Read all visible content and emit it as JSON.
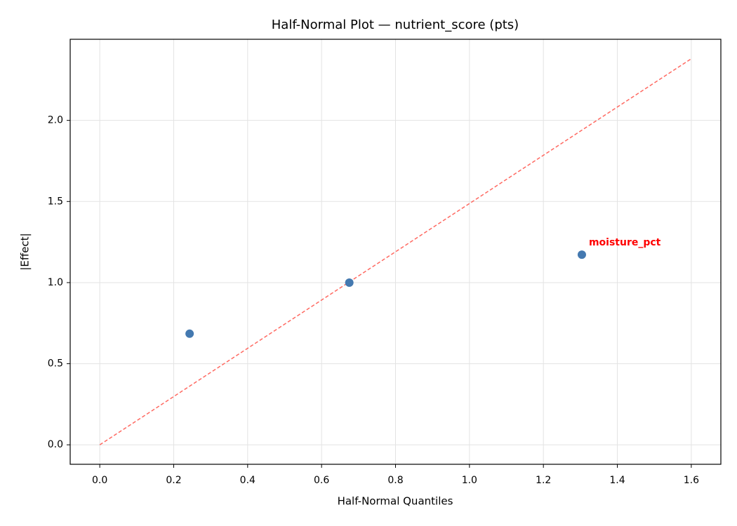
{
  "chart_data": {
    "type": "scatter",
    "title": "Half-Normal Plot — nutrient_score (pts)",
    "xlabel": "Half-Normal Quantiles",
    "ylabel": "|Effect|",
    "x": [
      0.243,
      0.675,
      1.304
    ],
    "y": [
      0.685,
      1.0,
      1.172
    ],
    "color": "#4479b0",
    "point_labels": [
      null,
      null,
      "moisture_pct"
    ],
    "point_label_color": "#ff0000",
    "reference_line": {
      "x": [
        0,
        1.6
      ],
      "y": [
        0,
        2.38
      ],
      "color": "#ff6961",
      "dashed": true
    },
    "xlim": [
      -0.08,
      1.68
    ],
    "ylim": [
      -0.12,
      2.5
    ],
    "xticks": [
      {
        "value": 0,
        "label": "0.0"
      },
      0.2,
      0.4,
      0.6,
      0.8,
      {
        "value": 1,
        "label": "1.0"
      },
      1.2,
      1.4,
      1.6
    ],
    "yticks": [
      {
        "value": 0,
        "label": "0.0"
      },
      0.5,
      {
        "value": 1,
        "label": "1.0"
      },
      1.5,
      {
        "value": 2,
        "label": "2.0"
      }
    ],
    "grid": true
  }
}
